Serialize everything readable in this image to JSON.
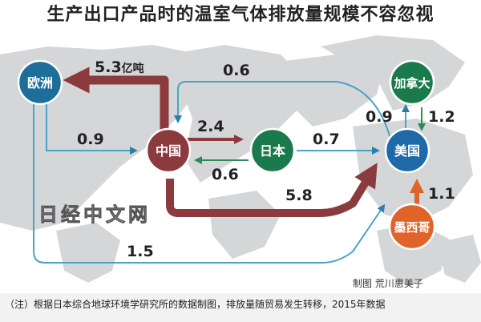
{
  "title": "生产出口产品时的温室气体排放量规模不容忽视",
  "nodes": {
    "europe": "欧洲",
    "china": "中国",
    "japan": "日本",
    "usa": "美国",
    "canada": "加拿大",
    "mexico": "墨西哥"
  },
  "flows": {
    "china_europe": "5.3",
    "china_europe_unit": "亿吨",
    "usa_china": "0.6",
    "europe_china": "0.9",
    "china_japan": "2.4",
    "japan_china": "0.6",
    "japan_usa": "0.7",
    "china_usa": "5.8",
    "europe_usa": "1.5",
    "usa_canada": "0.9",
    "canada_usa": "1.2",
    "mexico_usa": "1.1"
  },
  "watermark": "日经中文网",
  "credit": "制图 荒川惠美子",
  "note": "（注）根据日本综合地球环境学研究所的数据制图，排放量随贸易发生转移，2015年数据",
  "colors": {
    "europe": "#1e6e9c",
    "china": "#8b3a3e",
    "japan": "#1a7a4c",
    "usa": "#1e6aa8",
    "canada": "#1a7a4c",
    "mexico": "#e0632a",
    "china_flow": "#8b3a3e",
    "thin_flow": "#4aa2c8",
    "japan_flow": "#2e8b57",
    "mexico_flow": "#e0632a"
  }
}
